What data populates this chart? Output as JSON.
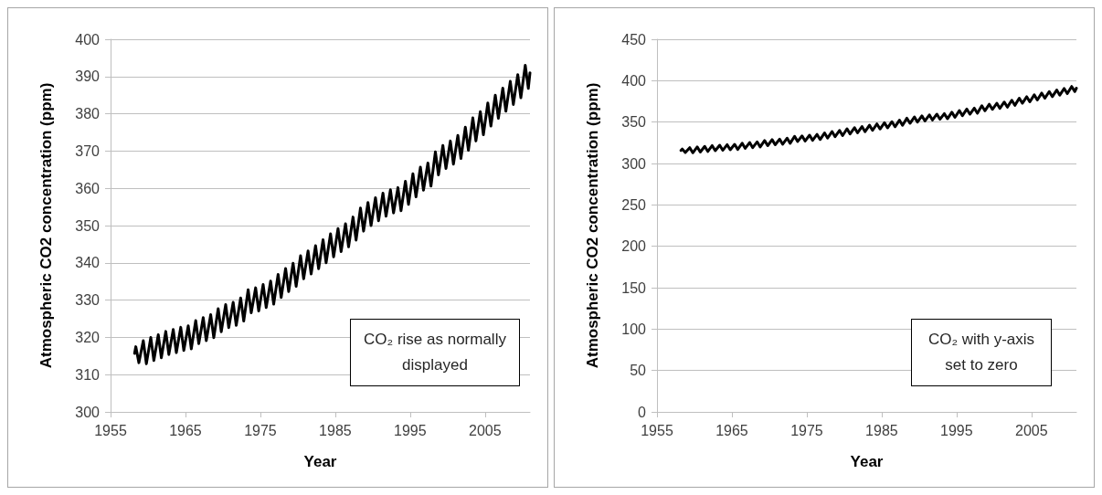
{
  "chart_data": [
    {
      "type": "line",
      "xlabel": "Year",
      "ylabel": "Atmospheric CO2 concentration (ppm)",
      "annotations": [
        "CO₂ rise as normally displayed"
      ],
      "xlim": [
        1955,
        2011
      ],
      "xticks": [
        1955,
        1965,
        1975,
        1985,
        1995,
        2005
      ],
      "ylim": [
        300,
        400
      ],
      "yticks": [
        300,
        310,
        320,
        330,
        340,
        350,
        360,
        370,
        380,
        390,
        400
      ],
      "grid": "y",
      "marker": "none",
      "line_style": "solid",
      "series": [
        {
          "color": "#000000",
          "x": [
            1958.2,
            1958.37,
            1958.78,
            1959.37,
            1959.78,
            1960.37,
            1960.78,
            1961.37,
            1961.78,
            1962.37,
            1962.78,
            1963.37,
            1963.78,
            1964.37,
            1964.78,
            1965.37,
            1965.78,
            1966.37,
            1966.78,
            1967.37,
            1967.78,
            1968.37,
            1968.78,
            1969.37,
            1969.78,
            1970.37,
            1970.78,
            1971.37,
            1971.78,
            1972.37,
            1972.78,
            1973.37,
            1973.78,
            1974.37,
            1974.78,
            1975.37,
            1975.78,
            1976.37,
            1976.78,
            1977.37,
            1977.78,
            1978.37,
            1978.78,
            1979.37,
            1979.78,
            1980.37,
            1980.78,
            1981.37,
            1981.78,
            1982.37,
            1982.78,
            1983.37,
            1983.78,
            1984.37,
            1984.78,
            1985.37,
            1985.78,
            1986.37,
            1986.78,
            1987.37,
            1987.78,
            1988.37,
            1988.78,
            1989.37,
            1989.78,
            1990.37,
            1990.78,
            1991.37,
            1991.78,
            1992.37,
            1992.78,
            1993.37,
            1993.78,
            1994.37,
            1994.78,
            1995.37,
            1995.78,
            1996.37,
            1996.78,
            1997.37,
            1997.78,
            1998.37,
            1998.78,
            1999.37,
            1999.78,
            2000.37,
            2000.78,
            2001.37,
            2001.78,
            2002.37,
            2002.78,
            2003.37,
            2003.78,
            2004.37,
            2004.78,
            2005.37,
            2005.78,
            2006.37,
            2006.78,
            2007.37,
            2007.78,
            2008.37,
            2008.78,
            2009.37,
            2009.78,
            2010.37,
            2010.78,
            2011.0
          ],
          "values": [
            315.7,
            317.5,
            313.2,
            319.1,
            312.9,
            320.0,
            313.8,
            320.7,
            314.5,
            321.6,
            315.4,
            322.1,
            315.9,
            322.7,
            316.5,
            323.1,
            316.9,
            324.5,
            318.3,
            325.3,
            319.1,
            326.1,
            319.9,
            327.7,
            321.5,
            328.8,
            322.6,
            329.4,
            323.2,
            330.6,
            324.4,
            332.8,
            326.6,
            333.3,
            327.1,
            334.2,
            328.0,
            335.1,
            328.9,
            336.9,
            330.7,
            338.5,
            332.3,
            339.9,
            333.7,
            341.9,
            335.7,
            343.2,
            337.0,
            344.6,
            338.4,
            346.2,
            340.0,
            347.8,
            341.6,
            349.2,
            343.0,
            350.5,
            344.3,
            352.3,
            346.1,
            354.7,
            348.5,
            356.2,
            350.0,
            357.5,
            351.3,
            358.7,
            352.5,
            359.6,
            353.4,
            360.2,
            354.0,
            361.9,
            355.7,
            363.9,
            357.7,
            365.7,
            359.5,
            366.8,
            360.6,
            369.8,
            363.6,
            371.5,
            365.3,
            372.7,
            366.5,
            374.2,
            368.0,
            376.4,
            370.2,
            378.9,
            372.7,
            380.6,
            374.4,
            382.9,
            376.7,
            385.0,
            378.8,
            386.9,
            380.7,
            388.7,
            382.5,
            390.5,
            384.3,
            393.0,
            386.8,
            391.0
          ]
        }
      ]
    },
    {
      "type": "line",
      "xlabel": "Year",
      "ylabel": "Atmospheric CO2 concentration (ppm)",
      "annotations": [
        "CO₂ with y-axis set to zero"
      ],
      "xlim": [
        1955,
        2011
      ],
      "xticks": [
        1955,
        1965,
        1975,
        1985,
        1995,
        2005
      ],
      "ylim": [
        0,
        450
      ],
      "yticks": [
        0,
        50,
        100,
        150,
        200,
        250,
        300,
        350,
        400,
        450
      ],
      "grid": "y",
      "marker": "none",
      "line_style": "solid",
      "series": [
        {
          "color": "#000000",
          "x": [
            1958.2,
            1958.37,
            1958.78,
            1959.37,
            1959.78,
            1960.37,
            1960.78,
            1961.37,
            1961.78,
            1962.37,
            1962.78,
            1963.37,
            1963.78,
            1964.37,
            1964.78,
            1965.37,
            1965.78,
            1966.37,
            1966.78,
            1967.37,
            1967.78,
            1968.37,
            1968.78,
            1969.37,
            1969.78,
            1970.37,
            1970.78,
            1971.37,
            1971.78,
            1972.37,
            1972.78,
            1973.37,
            1973.78,
            1974.37,
            1974.78,
            1975.37,
            1975.78,
            1976.37,
            1976.78,
            1977.37,
            1977.78,
            1978.37,
            1978.78,
            1979.37,
            1979.78,
            1980.37,
            1980.78,
            1981.37,
            1981.78,
            1982.37,
            1982.78,
            1983.37,
            1983.78,
            1984.37,
            1984.78,
            1985.37,
            1985.78,
            1986.37,
            1986.78,
            1987.37,
            1987.78,
            1988.37,
            1988.78,
            1989.37,
            1989.78,
            1990.37,
            1990.78,
            1991.37,
            1991.78,
            1992.37,
            1992.78,
            1993.37,
            1993.78,
            1994.37,
            1994.78,
            1995.37,
            1995.78,
            1996.37,
            1996.78,
            1997.37,
            1997.78,
            1998.37,
            1998.78,
            1999.37,
            1999.78,
            2000.37,
            2000.78,
            2001.37,
            2001.78,
            2002.37,
            2002.78,
            2003.37,
            2003.78,
            2004.37,
            2004.78,
            2005.37,
            2005.78,
            2006.37,
            2006.78,
            2007.37,
            2007.78,
            2008.37,
            2008.78,
            2009.37,
            2009.78,
            2010.37,
            2010.78,
            2011.0
          ],
          "values": [
            315.7,
            317.5,
            313.2,
            319.1,
            312.9,
            320.0,
            313.8,
            320.7,
            314.5,
            321.6,
            315.4,
            322.1,
            315.9,
            322.7,
            316.5,
            323.1,
            316.9,
            324.5,
            318.3,
            325.3,
            319.1,
            326.1,
            319.9,
            327.7,
            321.5,
            328.8,
            322.6,
            329.4,
            323.2,
            330.6,
            324.4,
            332.8,
            326.6,
            333.3,
            327.1,
            334.2,
            328.0,
            335.1,
            328.9,
            336.9,
            330.7,
            338.5,
            332.3,
            339.9,
            333.7,
            341.9,
            335.7,
            343.2,
            337.0,
            344.6,
            338.4,
            346.2,
            340.0,
            347.8,
            341.6,
            349.2,
            343.0,
            350.5,
            344.3,
            352.3,
            346.1,
            354.7,
            348.5,
            356.2,
            350.0,
            357.5,
            351.3,
            358.7,
            352.5,
            359.6,
            353.4,
            360.2,
            354.0,
            361.9,
            355.7,
            363.9,
            357.7,
            365.7,
            359.5,
            366.8,
            360.6,
            369.8,
            363.6,
            371.5,
            365.3,
            372.7,
            366.5,
            374.2,
            368.0,
            376.4,
            370.2,
            378.9,
            372.7,
            380.6,
            374.4,
            382.9,
            376.7,
            385.0,
            378.8,
            386.9,
            380.7,
            388.7,
            382.5,
            390.5,
            384.3,
            393.0,
            386.8,
            391.0
          ]
        }
      ]
    }
  ]
}
